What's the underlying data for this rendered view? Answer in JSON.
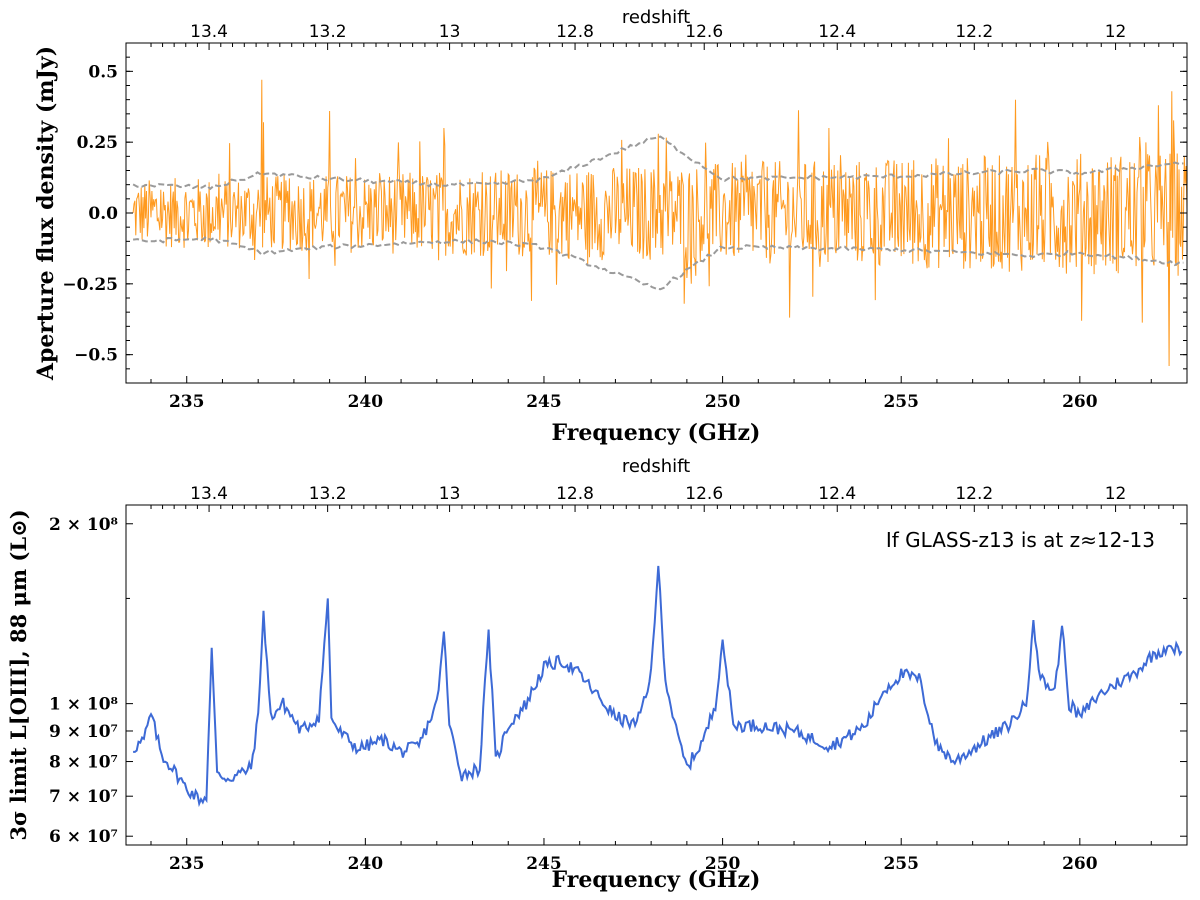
{
  "chart_data": [
    {
      "type": "line",
      "name": "top-panel",
      "xlabel": "Frequency (GHz)",
      "ylabel": "Aperture flux density (mJy)",
      "top_axis_label": "redshift",
      "xlim": [
        233.3,
        263.0
      ],
      "ylim": [
        -0.6,
        0.6
      ],
      "xticks": [
        235,
        240,
        245,
        250,
        255,
        260
      ],
      "xtick_labels": [
        "235",
        "240",
        "245",
        "250",
        "255",
        "260"
      ],
      "yticks": [
        -0.5,
        -0.25,
        0.0,
        0.25,
        0.5
      ],
      "ytick_labels": [
        "−0.5",
        "−0.25",
        "0.0",
        "0.25",
        "0.5"
      ],
      "redshift_ticks": [
        13.4,
        13.2,
        13.0,
        12.8,
        12.6,
        12.4,
        12.2,
        12.0
      ],
      "redshift_tick_labels": [
        "13.4",
        "13.2",
        "13",
        "12.8",
        "12.6",
        "12.4",
        "12.2",
        "12"
      ],
      "series": [
        {
          "name": "aperture flux density",
          "color": "#ff9a1f",
          "description_points_x": [
            233.5,
            235.6,
            237.1,
            237.15,
            239.0,
            242.2,
            248.2,
            258.2,
            262.2,
            262.5
          ],
          "description_points_y": [
            0.0,
            -0.12,
            0.47,
            0.32,
            0.36,
            0.3,
            0.28,
            0.4,
            0.38,
            -0.54
          ]
        },
        {
          "name": "+1 sigma noise",
          "color": "#9a9a9a",
          "style": "dashed",
          "x": [
            233.5,
            235.7,
            237.1,
            239.0,
            242.2,
            243.5,
            245.0,
            248.2,
            250.0,
            255.0,
            258.7,
            260.0,
            263.0
          ],
          "y": [
            0.1,
            0.09,
            0.14,
            0.12,
            0.1,
            0.1,
            0.12,
            0.27,
            0.12,
            0.13,
            0.15,
            0.14,
            0.18
          ]
        },
        {
          "name": "-1 sigma noise",
          "color": "#9a9a9a",
          "style": "dashed",
          "x": [
            233.5,
            235.7,
            237.1,
            239.0,
            242.2,
            243.5,
            245.0,
            248.2,
            250.0,
            255.0,
            258.7,
            260.0,
            263.0
          ],
          "y": [
            -0.1,
            -0.09,
            -0.14,
            -0.12,
            -0.1,
            -0.1,
            -0.12,
            -0.27,
            -0.12,
            -0.13,
            -0.15,
            -0.14,
            -0.18
          ]
        }
      ]
    },
    {
      "type": "line",
      "name": "bottom-panel",
      "xlabel": "Frequency (GHz)",
      "ylabel": "3σ limit L[OIII], 88 μm (L⊙)",
      "top_axis_label": "redshift",
      "annotation": "If GLASS-z13 is at z≈12-13",
      "yscale": "log",
      "xlim": [
        233.3,
        263.0
      ],
      "ylim": [
        58000000,
        215000000
      ],
      "xticks": [
        235,
        240,
        245,
        250,
        255,
        260
      ],
      "xtick_labels": [
        "235",
        "240",
        "245",
        "250",
        "255",
        "260"
      ],
      "yticks": [
        60000000,
        70000000,
        80000000,
        90000000,
        100000000,
        200000000
      ],
      "ytick_labels": [
        "6 × 10⁷",
        "7 × 10⁷",
        "8 × 10⁷",
        "9 × 10⁷",
        "1 × 10⁸",
        "2 × 10⁸"
      ],
      "redshift_ticks": [
        13.4,
        13.2,
        13.0,
        12.8,
        12.6,
        12.4,
        12.2,
        12.0
      ],
      "redshift_tick_labels": [
        "13.4",
        "13.2",
        "13",
        "12.8",
        "12.6",
        "12.4",
        "12.2",
        "12"
      ],
      "series": [
        {
          "name": "3 sigma limit",
          "color": "#3d6ad6",
          "x": [
            233.5,
            233.8,
            234.0,
            234.3,
            234.6,
            235.0,
            235.4,
            235.55,
            235.7,
            235.85,
            236.2,
            236.8,
            237.0,
            237.15,
            237.35,
            237.7,
            238.2,
            238.7,
            238.95,
            239.05,
            239.25,
            239.8,
            240.5,
            241.0,
            241.5,
            242.0,
            242.2,
            242.35,
            242.7,
            243.2,
            243.45,
            243.65,
            244.0,
            244.5,
            245.0,
            245.5,
            246.0,
            246.5,
            247.0,
            247.6,
            248.0,
            248.2,
            248.4,
            248.7,
            249.0,
            249.5,
            249.8,
            250.0,
            250.3,
            251.0,
            252.0,
            253.0,
            253.5,
            254.0,
            254.5,
            255.0,
            255.5,
            256.0,
            256.5,
            257.0,
            257.5,
            258.0,
            258.5,
            258.7,
            258.9,
            259.3,
            259.5,
            259.7,
            260.0,
            260.5,
            261.0,
            261.5,
            262.0,
            262.5,
            262.9
          ],
          "y": [
            84000000,
            87000000,
            96000000,
            82000000,
            78000000,
            72000000,
            69000000,
            70000000,
            124000000,
            76000000,
            75000000,
            78000000,
            95000000,
            143000000,
            95000000,
            100000000,
            90000000,
            95000000,
            150000000,
            95000000,
            90000000,
            84000000,
            87000000,
            83000000,
            85000000,
            100000000,
            132000000,
            92000000,
            76000000,
            78000000,
            133000000,
            80000000,
            92000000,
            100000000,
            115000000,
            118000000,
            112000000,
            103000000,
            95000000,
            92000000,
            112000000,
            170000000,
            110000000,
            90000000,
            78000000,
            88000000,
            100000000,
            128000000,
            92000000,
            92000000,
            90000000,
            85000000,
            88000000,
            92000000,
            105000000,
            112000000,
            110000000,
            85000000,
            80000000,
            84000000,
            88000000,
            92000000,
            100000000,
            138000000,
            110000000,
            105000000,
            135000000,
            100000000,
            95000000,
            103000000,
            108000000,
            112000000,
            120000000,
            125000000,
            122000000
          ]
        }
      ]
    }
  ]
}
